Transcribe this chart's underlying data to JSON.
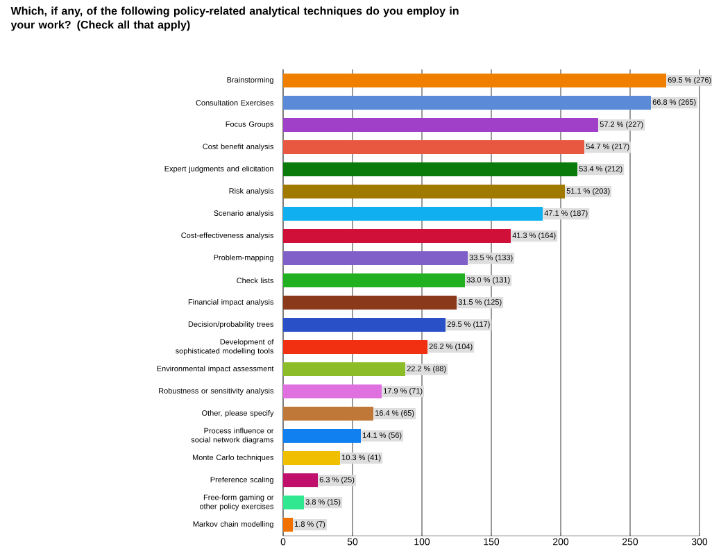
{
  "chart_data": {
    "type": "bar",
    "orientation": "horizontal",
    "title": "Which, if any, of the following policy-related analytical techniques do you employ in your work? (Check all that apply)",
    "categories": [
      "Brainstorming",
      "Consultation Exercises",
      "Focus Groups",
      "Cost benefit analysis",
      "Expert judgments and elicitation",
      "Risk analysis",
      "Scenario analysis",
      "Cost-effectiveness analysis",
      "Problem-mapping",
      "Check lists",
      "Financial impact analysis",
      "Decision/probability trees",
      "Development of sophisticated modelling tools",
      "Environmental impact assessment",
      "Robustness or sensitivity analysis",
      "Other, please specify",
      "Process influence or social network diagrams",
      "Monte Carlo techniques",
      "Preference scaling",
      "Free-form gaming or other policy exercises",
      "Markov chain modelling"
    ],
    "values": [
      276,
      265,
      227,
      217,
      212,
      203,
      187,
      164,
      133,
      131,
      125,
      117,
      104,
      88,
      71,
      65,
      56,
      41,
      25,
      15,
      7
    ],
    "value_labels": [
      "69.5 % (276)",
      "66.8 % (265)",
      "57.2 % (227)",
      "54.7 % (217)",
      "53.4 % (212)",
      "51.1 % (203)",
      "47.1 % (187)",
      "41.3 % (164)",
      "33.5 % (133)",
      "33.0 % (131)",
      "31.5 % (125)",
      "29.5 % (117)",
      "26.2 % (104)",
      "22.2 % (88)",
      "17.9 % (71)",
      "16.4 % (65)",
      "14.1 % (56)",
      "10.3 % (41)",
      "6.3 % (25)",
      "3.8 % (15)",
      "1.8 % (7)"
    ],
    "colors": [
      "#f07f00",
      "#5b8ad8",
      "#a040c8",
      "#e85840",
      "#0a7a0a",
      "#a07a00",
      "#10b0f0",
      "#d01038",
      "#8060c8",
      "#20b020",
      "#8a3a1a",
      "#2a50c8",
      "#f03010",
      "#8cbc28",
      "#e070e0",
      "#c07838",
      "#1080f0",
      "#f0c000",
      "#c0106c",
      "#30e890",
      "#f07000"
    ],
    "xlim": [
      0,
      300
    ],
    "xticks": [
      0,
      50,
      100,
      150,
      200,
      250,
      300
    ],
    "grid": "x"
  }
}
